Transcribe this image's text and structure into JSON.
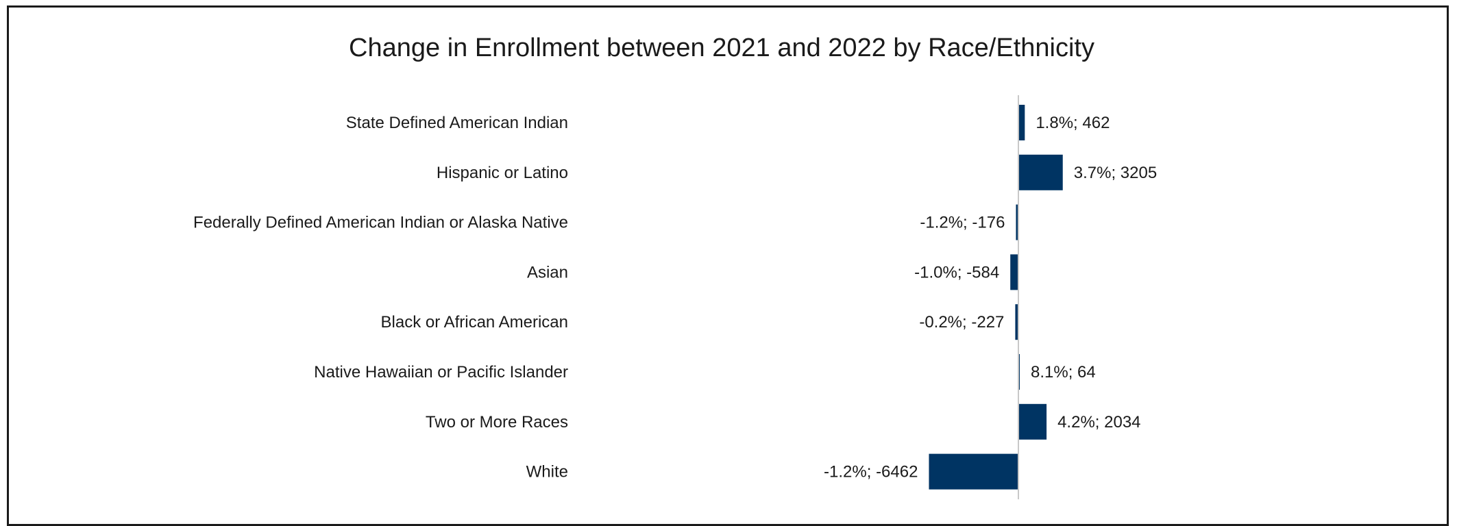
{
  "chart_data": {
    "type": "bar",
    "orientation": "horizontal",
    "title": "Change in Enrollment between 2021 and 2022 by Race/Ethnicity",
    "xlabel": "",
    "ylabel": "",
    "grid": false,
    "legend": "none",
    "bar_color": "#003463",
    "axis_color": "#c8c8c8",
    "xlim": [
      -7000,
      3500
    ],
    "categories": [
      "State Defined American Indian",
      "Hispanic or Latino",
      "Federally Defined American Indian or Alaska Native",
      "Asian",
      "Black or African American",
      "Native Hawaiian or Pacific Islander",
      "Two or More Races",
      "White"
    ],
    "values": [
      462,
      3205,
      -176,
      -584,
      -227,
      64,
      2034,
      -6462
    ],
    "percent_change": [
      "1.8%",
      "3.7%",
      "-1.2%",
      "-1.0%",
      "-0.2%",
      "8.1%",
      "4.2%",
      "-1.2%"
    ],
    "data_labels": [
      "1.8%; 462",
      "3.7%; 3205",
      "-1.2%; -176",
      "-1.0%; -584",
      "-0.2%; -227",
      "8.1%; 64",
      "4.2%; 2034",
      "-1.2%; -6462"
    ]
  }
}
